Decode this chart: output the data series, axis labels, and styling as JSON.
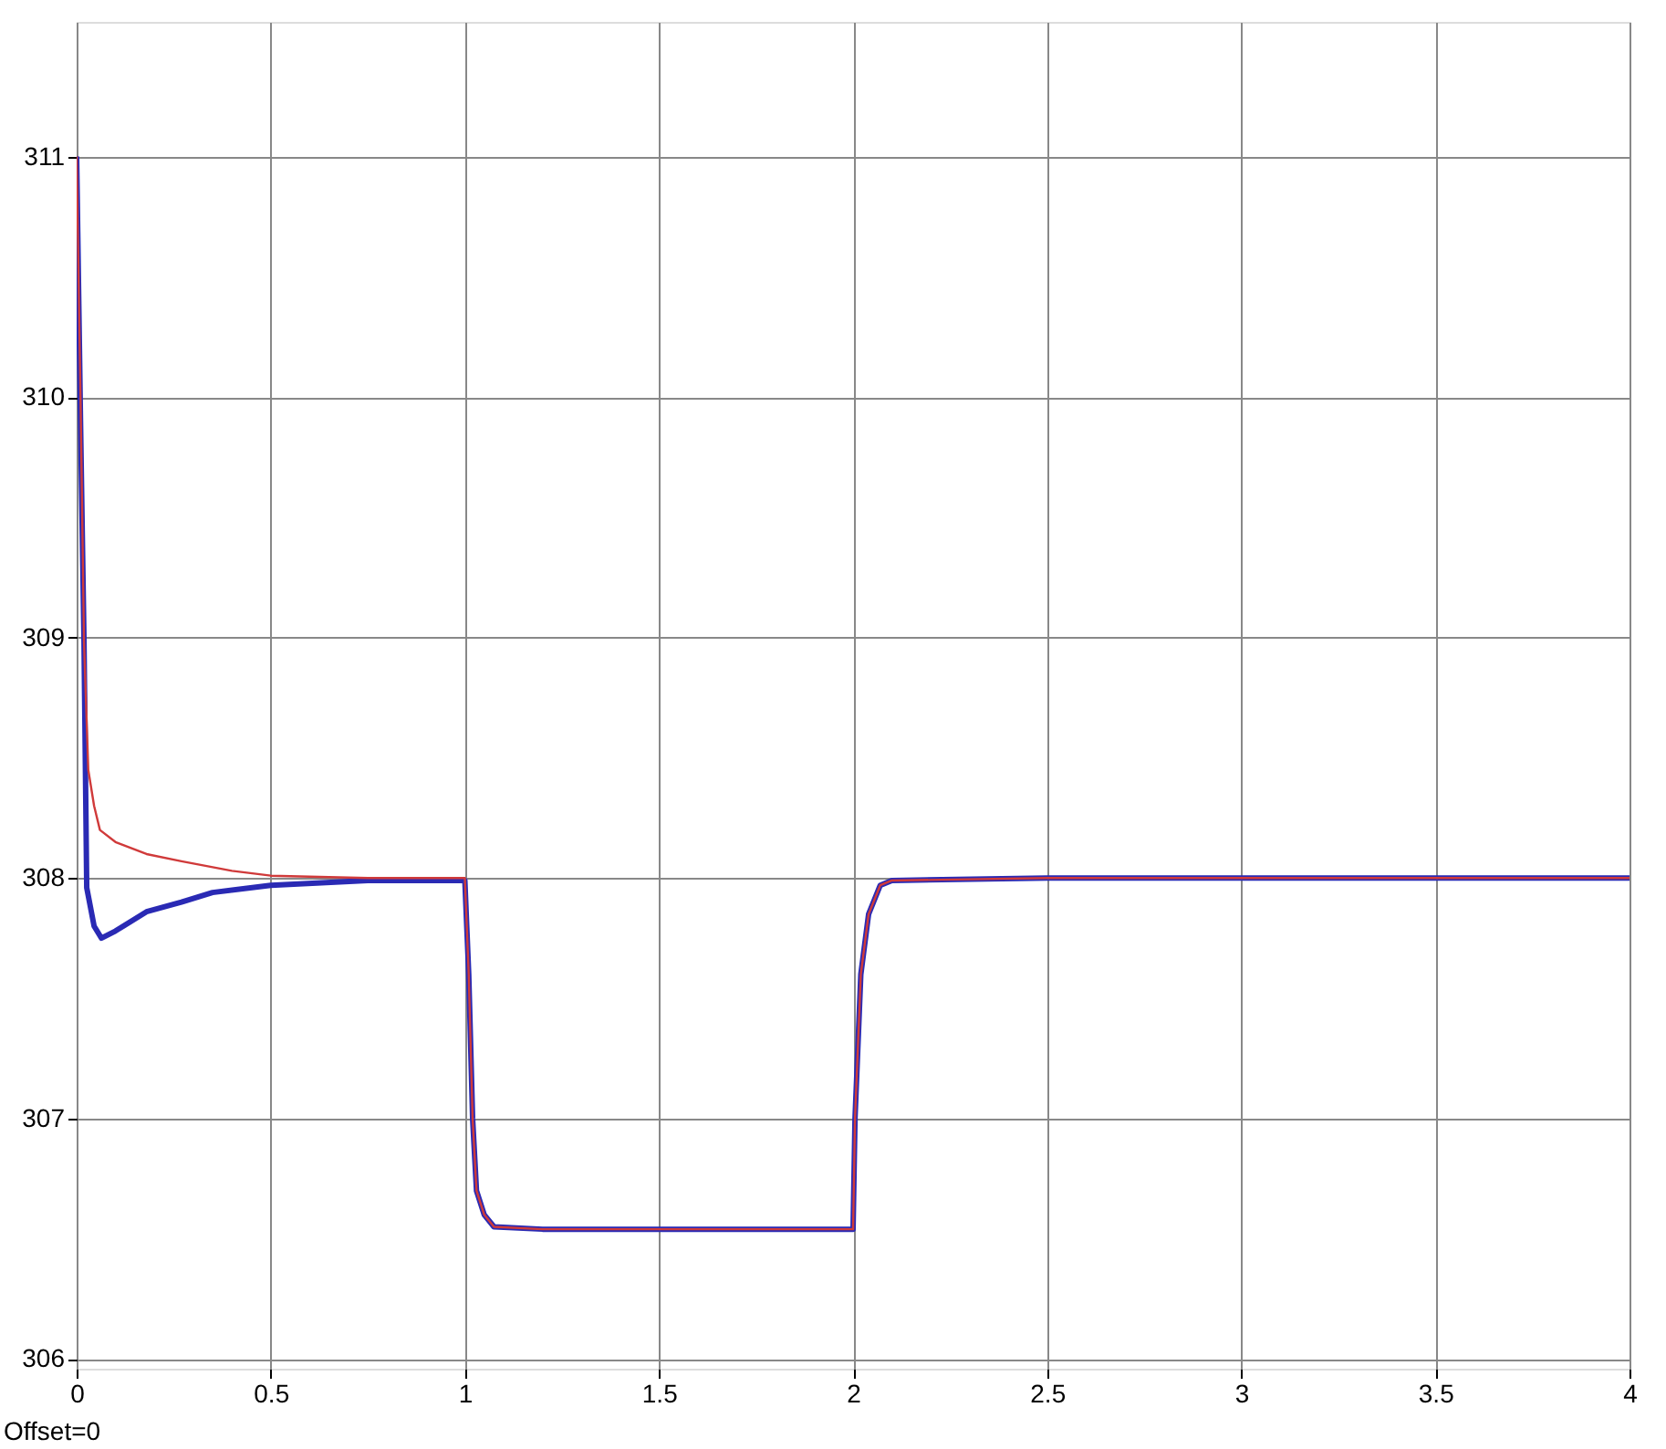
{
  "chart_data": {
    "type": "line",
    "annotations": [
      "Offset=0"
    ],
    "series": [
      {
        "color": "#d03a3a",
        "x": [
          0,
          0.01,
          0.019,
          0.03,
          0.045,
          0.06,
          0.1,
          0.18,
          0.27,
          0.4,
          0.5,
          0.75,
          1.0,
          1.01,
          1.02,
          1.03,
          1.05,
          1.075,
          1.2,
          1.5,
          2.0,
          2.005,
          2.02,
          2.04,
          2.07,
          2.1,
          2.5,
          3,
          3.5,
          4
        ],
        "values": [
          311,
          310,
          308.98,
          308.45,
          308.3,
          308.2,
          308.15,
          308.1,
          308.07,
          308.03,
          308.01,
          308.0,
          308.0,
          307.6,
          307.0,
          306.7,
          306.6,
          306.55,
          306.54,
          306.54,
          306.54,
          307.0,
          307.6,
          307.85,
          307.97,
          307.99,
          308,
          308,
          308,
          308
        ]
      },
      {
        "color": "#2a2ab4",
        "x": [
          0,
          0.01,
          0.019,
          0.026,
          0.045,
          0.064,
          0.1,
          0.18,
          0.27,
          0.35,
          0.5,
          0.75,
          1.0,
          1.01,
          1.02,
          1.03,
          1.05,
          1.075,
          1.2,
          1.5,
          2.0,
          2.005,
          2.02,
          2.04,
          2.07,
          2.1,
          2.5,
          3,
          3.5,
          4
        ],
        "values": [
          311,
          309.9,
          308.98,
          307.96,
          307.8,
          307.75,
          307.78,
          307.86,
          307.9,
          307.94,
          307.97,
          307.99,
          307.99,
          307.6,
          307.0,
          306.7,
          306.6,
          306.55,
          306.54,
          306.54,
          306.54,
          307.0,
          307.6,
          307.85,
          307.97,
          307.99,
          308,
          308,
          308,
          308
        ]
      }
    ],
    "xlim": [
      0,
      4
    ],
    "xticks": [
      0,
      0.5,
      1,
      1.5,
      2,
      2.5,
      3,
      3.5,
      4
    ],
    "ylim": [
      305.96,
      311.56
    ],
    "yticks": [
      306,
      307,
      308,
      309,
      310,
      311
    ],
    "grid": true,
    "line_style": "solid"
  }
}
